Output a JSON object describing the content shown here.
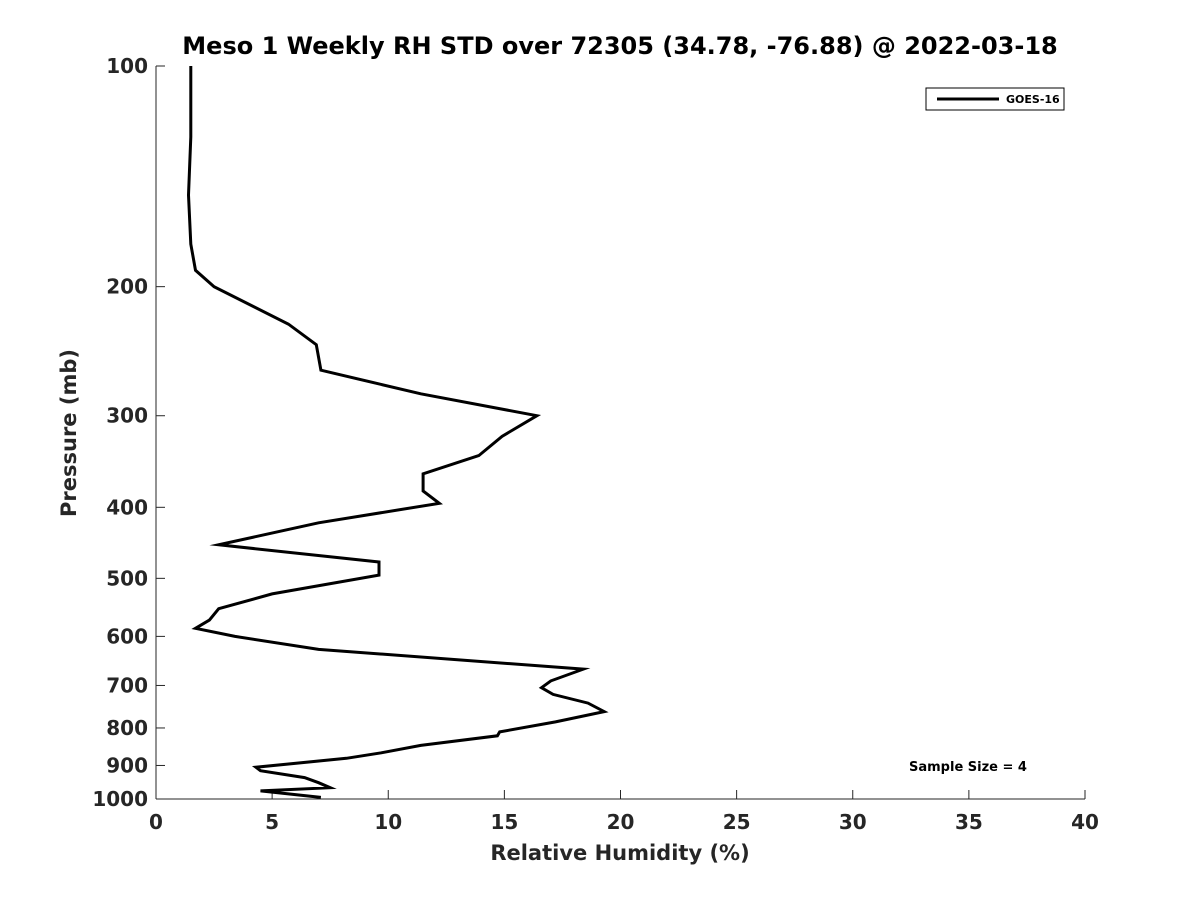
{
  "chart_data": {
    "type": "line",
    "title": "Meso 1 Weekly RH STD over 72305 (34.78, -76.88) @ 2022-03-18",
    "xlabel": "Relative Humidity (%)",
    "ylabel": "Pressure (mb)",
    "xlim": [
      0,
      40
    ],
    "ylim": [
      100,
      1000
    ],
    "y_scale": "log",
    "y_reversed": true,
    "grid": false,
    "x_ticks": [
      "0",
      "5",
      "10",
      "15",
      "20",
      "25",
      "30",
      "35",
      "40"
    ],
    "y_ticks": [
      "100",
      "200",
      "300",
      "400",
      "500",
      "600",
      "700",
      "800",
      "900",
      "1000"
    ],
    "legend_position": "top-right",
    "series": [
      {
        "name": "GOES-16",
        "color": "#000000",
        "points": [
          [
            1.5,
            100
          ],
          [
            1.5,
            125
          ],
          [
            1.4,
            150
          ],
          [
            1.5,
            175
          ],
          [
            1.7,
            190
          ],
          [
            2.5,
            200
          ],
          [
            5.7,
            225
          ],
          [
            6.9,
            240
          ],
          [
            7.1,
            260
          ],
          [
            11.4,
            280
          ],
          [
            16.4,
            300
          ],
          [
            14.9,
            320
          ],
          [
            13.9,
            340
          ],
          [
            11.5,
            360
          ],
          [
            11.5,
            380
          ],
          [
            12.2,
            395
          ],
          [
            7.0,
            420
          ],
          [
            2.7,
            450
          ],
          [
            9.6,
            475
          ],
          [
            9.6,
            495
          ],
          [
            5.0,
            525
          ],
          [
            2.7,
            550
          ],
          [
            2.3,
            570
          ],
          [
            1.7,
            585
          ],
          [
            3.4,
            600
          ],
          [
            7.0,
            625
          ],
          [
            18.4,
            665
          ],
          [
            17.0,
            690
          ],
          [
            16.6,
            705
          ],
          [
            17.1,
            720
          ],
          [
            18.6,
            740
          ],
          [
            19.3,
            760
          ],
          [
            17.2,
            785
          ],
          [
            14.8,
            810
          ],
          [
            14.7,
            820
          ],
          [
            11.4,
            845
          ],
          [
            9.7,
            865
          ],
          [
            8.2,
            880
          ],
          [
            4.3,
            905
          ],
          [
            4.5,
            915
          ],
          [
            6.4,
            935
          ],
          [
            7.0,
            950
          ],
          [
            7.5,
            965
          ],
          [
            4.5,
            975
          ],
          [
            7.1,
            995
          ]
        ]
      }
    ],
    "annotations": [
      "Sample Size = 4"
    ]
  }
}
